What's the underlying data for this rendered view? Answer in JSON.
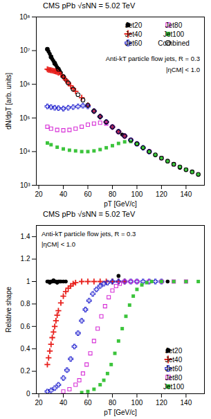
{
  "chart_data": [
    {
      "type": "scatter",
      "title": "CMS pPb √sNN = 5.02 TeV",
      "x_label": "pT [GeV/c]",
      "y_label": "dN/dpT [arb. units]",
      "annotations": [
        "Anti-kT particle flow jets, R = 0.3",
        "|ηCM| < 1.0"
      ],
      "log": "y",
      "grid": false,
      "legend": "top-right",
      "xlim": [
        18,
        155
      ],
      "xticks": [
        20,
        40,
        60,
        80,
        100,
        120,
        140
      ],
      "ylim": [
        1000,
        100000000
      ],
      "yticks": [
        {
          "value": 1000,
          "label": "10³"
        },
        {
          "value": 10000,
          "label": "10⁴"
        },
        {
          "value": 100000,
          "label": "10⁵"
        },
        {
          "value": 1000000,
          "label": "10⁶"
        },
        {
          "value": 10000000,
          "label": "10⁷"
        },
        {
          "value": 100000000,
          "label": "10⁸"
        }
      ],
      "series": [
        {
          "name": "Jet20",
          "color": "#000000",
          "marker": "circle",
          "x": [
            27,
            28,
            29,
            30,
            31,
            32,
            33,
            34,
            35,
            36,
            37,
            38,
            40,
            42,
            70,
            88,
            135
          ],
          "values": [
            11000000,
            9400000,
            8000000,
            6600000,
            5600000,
            4900000,
            4200000,
            3700000,
            3200000,
            2800000,
            2500000,
            2200000,
            1700000,
            1350000,
            110000,
            32000,
            3300
          ]
        },
        {
          "name": "Jet40",
          "color": "#e8201c",
          "marker": "plus",
          "x": [
            27,
            28,
            29,
            30,
            31,
            32,
            33,
            34,
            35,
            36,
            38,
            40,
            42,
            44,
            46,
            48,
            50,
            55,
            60,
            65,
            70,
            75,
            80,
            85,
            90
          ],
          "values": [
            2800000,
            2700000,
            2650000,
            2600000,
            2550000,
            2500000,
            2450000,
            2400000,
            2300000,
            2200000,
            1950000,
            1650000,
            1350000,
            1100000,
            900000,
            740000,
            620000,
            400000,
            240000,
            160000,
            110000,
            76000,
            54000,
            39000,
            29000
          ]
        },
        {
          "name": "Jet60",
          "color": "#2b2bd1",
          "marker": "cross-open",
          "x": [
            27,
            30,
            33,
            36,
            40,
            44,
            48,
            52,
            56,
            60,
            65,
            70,
            75,
            80,
            85,
            90,
            95,
            100,
            105,
            110
          ],
          "values": [
            220000,
            210000,
            200000,
            195000,
            190000,
            200000,
            210000,
            220000,
            230000,
            220000,
            160000,
            110000,
            76000,
            54000,
            39000,
            29000,
            22000,
            17000,
            13000,
            10000
          ]
        },
        {
          "name": "Jet80",
          "color": "#d62fd6",
          "marker": "square-open",
          "x": [
            27,
            30,
            35,
            40,
            45,
            50,
            55,
            60,
            65,
            70,
            75,
            80,
            85,
            90,
            95,
            100,
            110,
            120,
            130
          ],
          "values": [
            55000,
            48000,
            44000,
            43000,
            44000,
            48000,
            55000,
            63000,
            68000,
            72000,
            68000,
            54000,
            39000,
            29000,
            22000,
            17000,
            10000,
            6400,
            4200
          ]
        },
        {
          "name": "Jet100",
          "color": "#3cc43c",
          "marker": "square",
          "x": [
            27,
            30,
            35,
            40,
            45,
            50,
            55,
            60,
            65,
            70,
            75,
            80,
            85,
            90,
            95,
            100,
            105,
            110,
            115,
            120,
            125,
            130,
            135,
            140,
            145,
            150
          ],
          "values": [
            18000,
            16000,
            13500,
            12000,
            11000,
            10500,
            10000,
            10000,
            10500,
            11500,
            13000,
            15000,
            17500,
            19500,
            20000,
            17000,
            13000,
            10000,
            8000,
            6400,
            5200,
            4200,
            3500,
            2900,
            2500,
            2100
          ]
        },
        {
          "name": "Combined",
          "color": "#000000",
          "marker": "circle-open",
          "x": [
            27,
            30,
            33,
            36,
            40,
            44,
            48,
            52,
            56,
            60,
            65,
            70,
            75,
            80,
            85,
            90,
            95,
            100,
            105,
            110,
            115,
            120,
            125,
            130,
            135,
            140,
            145,
            150
          ],
          "values": [
            11000000,
            6500000,
            4200000,
            2800000,
            1700000,
            1100000,
            720000,
            490000,
            340000,
            240000,
            160000,
            110000,
            76000,
            54000,
            39000,
            29000,
            22000,
            17000,
            13000,
            10000,
            8000,
            6400,
            5200,
            4200,
            3500,
            2900,
            2500,
            2100
          ]
        }
      ]
    },
    {
      "type": "scatter",
      "title": "CMS pPb √sNN = 5.02 TeV",
      "x_label": "pT [GeV/c]",
      "y_label": "Relative shape",
      "annotations": [
        "Anti-kT particle flow jets, R = 0.3",
        "|ηCM| < 1.0"
      ],
      "grid": false,
      "legend": "bottom-right",
      "xlim": [
        18,
        155
      ],
      "xticks": [
        20,
        40,
        60,
        80,
        100,
        120,
        140
      ],
      "ylim": [
        0,
        1.5
      ],
      "yticks": [
        0,
        0.2,
        0.4,
        0.6,
        0.8,
        1,
        1.2,
        1.4
      ],
      "series": [
        {
          "name": "Jet20",
          "color": "#000000",
          "marker": "circle",
          "x": [
            27,
            28,
            29,
            30,
            31,
            32,
            33,
            34,
            35,
            36,
            37,
            38,
            40,
            42,
            85,
            125
          ],
          "values": [
            1,
            1,
            0.99,
            1,
            1,
            1.01,
            1,
            1,
            0.99,
            1,
            1,
            1,
            1,
            1,
            1.05,
            1
          ]
        },
        {
          "name": "Jet40",
          "color": "#e8201c",
          "marker": "plus",
          "x": [
            27,
            28,
            29,
            30,
            31,
            32,
            33,
            34,
            35,
            36,
            38,
            40,
            42,
            44,
            46,
            48,
            50,
            55,
            60,
            65,
            70,
            75,
            80,
            85,
            90
          ],
          "values": [
            0.26,
            0.32,
            0.38,
            0.44,
            0.5,
            0.55,
            0.6,
            0.65,
            0.7,
            0.74,
            0.81,
            0.87,
            0.91,
            0.94,
            0.96,
            0.98,
            0.99,
            1,
            1,
            1,
            1,
            1,
            1,
            1,
            1
          ]
        },
        {
          "name": "Jet60",
          "color": "#2b2bd1",
          "marker": "cross-open",
          "x": [
            27,
            30,
            33,
            36,
            40,
            43,
            46,
            49,
            52,
            55,
            58,
            61,
            64,
            67,
            70,
            73,
            76,
            80,
            85,
            90,
            95,
            100,
            105,
            110,
            115,
            120
          ],
          "values": [
            0.02,
            0.03,
            0.05,
            0.08,
            0.14,
            0.21,
            0.31,
            0.42,
            0.54,
            0.65,
            0.75,
            0.83,
            0.89,
            0.93,
            0.96,
            0.98,
            0.99,
            1,
            1,
            1,
            1,
            1,
            1,
            1,
            1,
            1
          ]
        },
        {
          "name": "Jet80",
          "color": "#d62fd6",
          "marker": "square-open",
          "x": [
            40,
            45,
            50,
            53,
            56,
            59,
            62,
            65,
            68,
            71,
            74,
            77,
            80,
            83,
            86,
            90,
            95,
            100,
            110,
            120,
            130,
            140
          ],
          "values": [
            0.02,
            0.04,
            0.08,
            0.12,
            0.18,
            0.26,
            0.36,
            0.47,
            0.58,
            0.69,
            0.78,
            0.86,
            0.92,
            0.96,
            0.98,
            1,
            1,
            1,
            1,
            1,
            1,
            1
          ]
        },
        {
          "name": "Jet100",
          "color": "#3cc43c",
          "marker": "square",
          "x": [
            55,
            60,
            65,
            70,
            73,
            76,
            79,
            82,
            85,
            88,
            91,
            94,
            97,
            100,
            104,
            108,
            112,
            120,
            130,
            140,
            150
          ],
          "values": [
            0.01,
            0.02,
            0.04,
            0.08,
            0.12,
            0.18,
            0.26,
            0.36,
            0.47,
            0.58,
            0.69,
            0.79,
            0.87,
            0.93,
            0.97,
            0.99,
            1,
            1,
            1,
            1,
            1
          ]
        }
      ]
    }
  ]
}
